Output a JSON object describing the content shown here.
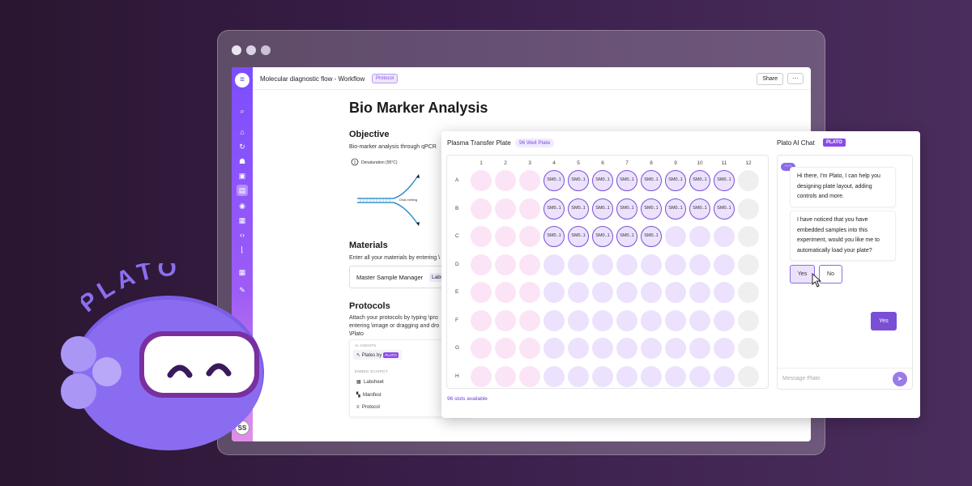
{
  "window": {
    "title": "Molecular diagnostic flow - Workflow",
    "badge": "Protocol",
    "share_label": "Share",
    "more_label": "···"
  },
  "sidebar": {
    "avatar": "SS"
  },
  "doc": {
    "title": "Bio Marker Analysis",
    "objective_heading": "Objective",
    "objective_text": "Bio-marker analysis through qPCR",
    "diagram_step": "Denaturation",
    "diagram_temp": "(95°C)",
    "diagram_step_num": "1",
    "diagram_label": "DNA melting",
    "materials_heading": "Materials",
    "materials_text": "Enter all your materials by entering \\",
    "material_item": "Master Sample Manager",
    "material_tag": "Labs",
    "protocols_heading": "Protocols",
    "protocols_text_1": "Attach your protocols by typing \\pro",
    "protocols_text_2": "entering \\image or dragging and dro",
    "plato_cmd": "\\Plato",
    "agents_section": "AI AGENTS",
    "agent_item": "Plates by",
    "agent_tag": "PLATO",
    "scispot_section": "EMBED SCISPOT",
    "embed_items": [
      "Labsheet",
      "Manifest",
      "Protocol"
    ]
  },
  "plate": {
    "title": "Plasma Transfer Plate",
    "badge": "96 Well Plate",
    "columns": [
      "1",
      "2",
      "3",
      "4",
      "5",
      "6",
      "7",
      "8",
      "9",
      "10",
      "11",
      "12"
    ],
    "rows": [
      "A",
      "B",
      "C",
      "D",
      "E",
      "F",
      "G",
      "H"
    ],
    "sample_label": "SM0..1",
    "slots_text": "96 slots available"
  },
  "chat": {
    "title": "Plato AI Chat",
    "badge": "PLATO",
    "msg1": "Hi there, I'm Plato, I can help you designing plate layout, adding controls and more.",
    "msg2": "I have noticed that you have embedded samples into this experiment, would you like me to automatically load your plate?",
    "yes_label": "Yes",
    "no_label": "No",
    "reply": "Yes",
    "placeholder": "Message Plato"
  },
  "brand": {
    "word": "PLATO"
  },
  "colors": {
    "accent": "#7a4fd6",
    "sample_border": "#7a4fd6",
    "well_pink": "#fbe4f6",
    "well_lavender": "#ece2fd",
    "well_grey": "#efefef"
  }
}
